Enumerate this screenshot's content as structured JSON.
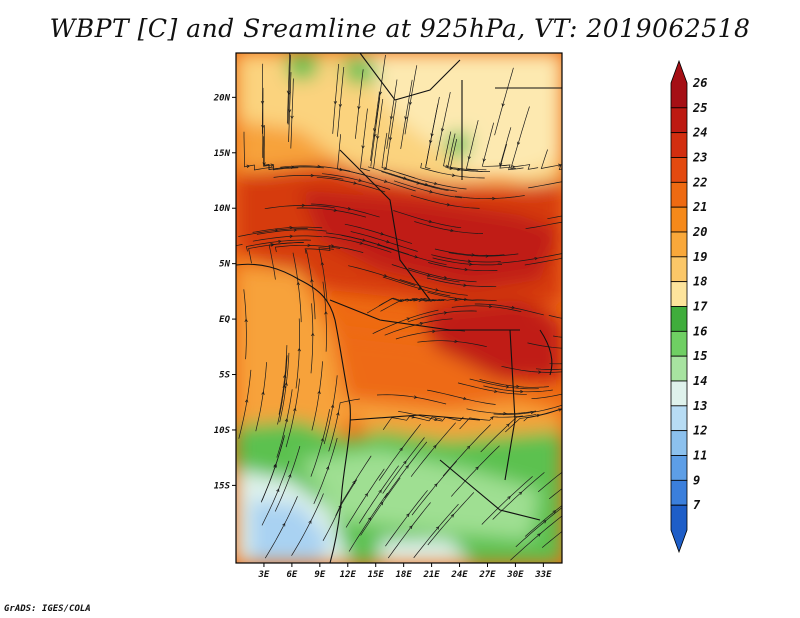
{
  "title": "WBPT [C] and Sreamline at 925hPa, VT: 2019062518",
  "footer": "GrADS: IGES/COLA",
  "map_extent": {
    "lon": [
      0,
      35
    ],
    "lat": [
      -22,
      24
    ]
  },
  "lat_labels": [
    {
      "lat": 20,
      "text": "20N"
    },
    {
      "lat": 15,
      "text": "15N"
    },
    {
      "lat": 10,
      "text": "10N"
    },
    {
      "lat": 5,
      "text": "5N"
    },
    {
      "lat": 0,
      "text": "EQ"
    },
    {
      "lat": -5,
      "text": "5S"
    },
    {
      "lat": -10,
      "text": "10S"
    },
    {
      "lat": -15,
      "text": "15S"
    }
  ],
  "lon_labels": [
    {
      "lon": 3,
      "text": "3E"
    },
    {
      "lon": 6,
      "text": "6E"
    },
    {
      "lon": 9,
      "text": "9E"
    },
    {
      "lon": 12,
      "text": "12E"
    },
    {
      "lon": 15,
      "text": "15E"
    },
    {
      "lon": 18,
      "text": "18E"
    },
    {
      "lon": 21,
      "text": "21E"
    },
    {
      "lon": 24,
      "text": "24E"
    },
    {
      "lon": 27,
      "text": "27E"
    },
    {
      "lon": 30,
      "text": "30E"
    },
    {
      "lon": 33,
      "text": "33E"
    }
  ],
  "colorbar": {
    "labels": [
      "26",
      "25",
      "24",
      "23",
      "22",
      "21",
      "20",
      "19",
      "18",
      "17",
      "16",
      "15",
      "14",
      "13",
      "12",
      "11",
      "9",
      "7"
    ],
    "colors": [
      "#a50f15",
      "#bd1a12",
      "#d22e10",
      "#e34a10",
      "#ee6a12",
      "#f5891a",
      "#f9a83a",
      "#fbc768",
      "#fde49c",
      "#3fad3c",
      "#6fcf63",
      "#a7e3a0",
      "#dff2ec",
      "#b7dcf4",
      "#8cc1ee",
      "#5d9ee6",
      "#3b7fdc",
      "#1e5ec8"
    ]
  },
  "field_colors": {
    "hot": "#c01a12",
    "hot2": "#d63a10",
    "warm": "#ee6a12",
    "mild": "#f7a23a",
    "cool": "#fbd37e",
    "pale": "#fde9b0",
    "green": "#5cc150",
    "lightgreen": "#9fdf92",
    "cyan": "#dff2ec",
    "blue": "#a9d2f2"
  }
}
